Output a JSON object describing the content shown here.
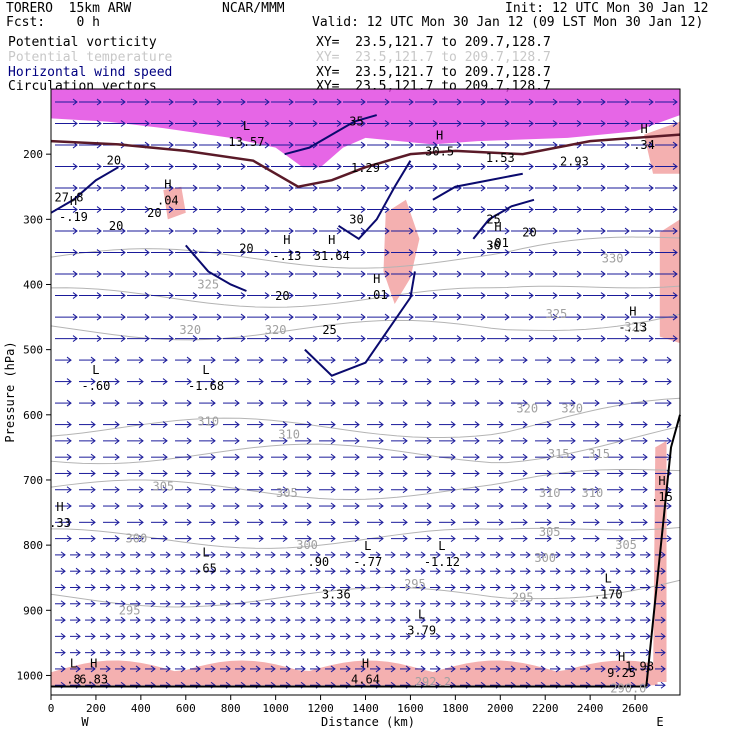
{
  "header": {
    "model": "TORERO  15km ARW",
    "org": "NCAR/MMM",
    "init": "Init: 12 UTC Mon 30 Jan 12",
    "fcst": "Fcst:    0 h",
    "valid": "Valid: 12 UTC Mon 30 Jan 12 (09 LST Mon 30 Jan 12)"
  },
  "legend": [
    {
      "label": "Potential vorticity",
      "color": "#000000",
      "xy": "XY=  23.5,121.7 to 209.7,128.7"
    },
    {
      "label": "Potential temperature",
      "color": "#c8c8c8",
      "xy": "XY=  23.5,121.7 to 209.7,128.7"
    },
    {
      "label": "Horizontal wind speed",
      "color": "#000080",
      "xy": "XY=  23.5,121.7 to 209.7,128.7"
    },
    {
      "label": "Circulation vectors",
      "color": "#000000",
      "xy": "XY=  23.5,121.7 to 209.7,128.7"
    }
  ],
  "chart_data": {
    "type": "cross-section",
    "xlabel": "Distance (km)",
    "ylabel": "Pressure (hPa)",
    "x_left_label": "W",
    "x_right_label": "E",
    "xlim": [
      0,
      2800
    ],
    "ylim": [
      1030,
      100
    ],
    "xticks": [
      0,
      200,
      400,
      600,
      800,
      1000,
      1200,
      1400,
      1600,
      1800,
      2000,
      2200,
      2400,
      2600
    ],
    "yticks": [
      200,
      300,
      400,
      500,
      600,
      700,
      800,
      900,
      1000
    ],
    "colors": {
      "pv_shading_strong": "#e040e0",
      "pv_shading_weak": "#f4b0b0",
      "wind_contour": "#0a0a6e",
      "theta_contour": "#b4b4b4",
      "vector": "#1a1a9a",
      "terrain": "#000000"
    },
    "wind_speed_contours": [
      {
        "value": 20,
        "points": [
          [
            0,
            290
          ],
          [
            100,
            270
          ],
          [
            200,
            240
          ],
          [
            300,
            220
          ]
        ]
      },
      {
        "value": 20,
        "points": [
          [
            600,
            340
          ],
          [
            700,
            380
          ],
          [
            800,
            400
          ],
          [
            870,
            410
          ]
        ]
      },
      {
        "value": 25,
        "points": [
          [
            1130,
            500
          ],
          [
            1250,
            540
          ],
          [
            1400,
            520
          ],
          [
            1500,
            470
          ],
          [
            1600,
            420
          ],
          [
            1620,
            380
          ]
        ]
      },
      {
        "value": 30,
        "points": [
          [
            1280,
            310
          ],
          [
            1370,
            330
          ],
          [
            1450,
            300
          ],
          [
            1530,
            250
          ],
          [
            1600,
            210
          ]
        ]
      },
      {
        "value": 35,
        "points": [
          [
            1040,
            200
          ],
          [
            1150,
            190
          ],
          [
            1250,
            170
          ],
          [
            1350,
            150
          ],
          [
            1450,
            140
          ]
        ]
      },
      {
        "value": 25,
        "points": [
          [
            1700,
            270
          ],
          [
            1800,
            250
          ],
          [
            1950,
            240
          ],
          [
            2100,
            230
          ]
        ]
      },
      {
        "value": 30,
        "points": [
          [
            1880,
            330
          ],
          [
            1950,
            300
          ],
          [
            2050,
            280
          ],
          [
            2150,
            270
          ]
        ]
      }
    ],
    "wind_speed_labels": [
      {
        "x": 280,
        "y": 210,
        "text": "20"
      },
      {
        "x": 290,
        "y": 310,
        "text": "20"
      },
      {
        "x": 870,
        "y": 345,
        "text": "20"
      },
      {
        "x": 1030,
        "y": 418,
        "text": "20"
      },
      {
        "x": 1240,
        "y": 470,
        "text": "25"
      },
      {
        "x": 1360,
        "y": 300,
        "text": "30"
      },
      {
        "x": 1360,
        "y": 150,
        "text": "35"
      },
      {
        "x": 1970,
        "y": 300,
        "text": "25"
      },
      {
        "x": 1970,
        "y": 340,
        "text": "30"
      },
      {
        "x": 2130,
        "y": 320,
        "text": "20"
      },
      {
        "x": 460,
        "y": 290,
        "text": "20"
      }
    ],
    "theta_labels": [
      {
        "x": 620,
        "y": 470,
        "text": "320"
      },
      {
        "x": 1000,
        "y": 470,
        "text": "320"
      },
      {
        "x": 2320,
        "y": 590,
        "text": "320"
      },
      {
        "x": 2120,
        "y": 590,
        "text": "320"
      },
      {
        "x": 2600,
        "y": 465,
        "text": "325"
      },
      {
        "x": 2250,
        "y": 445,
        "text": "325"
      },
      {
        "x": 700,
        "y": 400,
        "text": "325"
      },
      {
        "x": 2500,
        "y": 360,
        "text": "330"
      },
      {
        "x": 700,
        "y": 610,
        "text": "310"
      },
      {
        "x": 1060,
        "y": 630,
        "text": "310"
      },
      {
        "x": 2260,
        "y": 660,
        "text": "315"
      },
      {
        "x": 2440,
        "y": 660,
        "text": "315"
      },
      {
        "x": 500,
        "y": 710,
        "text": "305"
      },
      {
        "x": 1050,
        "y": 720,
        "text": "305"
      },
      {
        "x": 2220,
        "y": 720,
        "text": "310"
      },
      {
        "x": 2410,
        "y": 720,
        "text": "310"
      },
      {
        "x": 2220,
        "y": 780,
        "text": "305"
      },
      {
        "x": 2560,
        "y": 800,
        "text": "305"
      },
      {
        "x": 380,
        "y": 790,
        "text": "300"
      },
      {
        "x": 1140,
        "y": 800,
        "text": "300"
      },
      {
        "x": 2200,
        "y": 820,
        "text": "300"
      },
      {
        "x": 1620,
        "y": 860,
        "text": "295"
      },
      {
        "x": 2100,
        "y": 880,
        "text": "295"
      },
      {
        "x": 350,
        "y": 900,
        "text": "295"
      },
      {
        "x": 2570,
        "y": 1020,
        "text": "290.0"
      },
      {
        "x": 1700,
        "y": 1010,
        "text": "292.2"
      }
    ],
    "extrema_labels": [
      {
        "x": 870,
        "y": 175,
        "mark": "L",
        "value": "13.57"
      },
      {
        "x": 1730,
        "y": 190,
        "mark": "H",
        "value": "30.5"
      },
      {
        "x": 2000,
        "y": 200,
        "mark": "",
        "value": "1.53"
      },
      {
        "x": 2330,
        "y": 205,
        "mark": "",
        "value": "2.93"
      },
      {
        "x": 2640,
        "y": 180,
        "mark": "H",
        "value": ".34"
      },
      {
        "x": 1400,
        "y": 215,
        "mark": "",
        "value": "1.29"
      },
      {
        "x": 80,
        "y": 260,
        "mark": "",
        "value": "27.8"
      },
      {
        "x": 100,
        "y": 290,
        "mark": "H",
        "value": "-.19"
      },
      {
        "x": 520,
        "y": 265,
        "mark": "H",
        "value": ".04"
      },
      {
        "x": 1990,
        "y": 330,
        "mark": "H",
        "value": ".01"
      },
      {
        "x": 1050,
        "y": 350,
        "mark": "H",
        "value": "-.13"
      },
      {
        "x": 1250,
        "y": 350,
        "mark": "H",
        "value": "31.64"
      },
      {
        "x": 1450,
        "y": 410,
        "mark": "H",
        "value": ".01"
      },
      {
        "x": 2590,
        "y": 460,
        "mark": "H",
        "value": "-.13"
      },
      {
        "x": 200,
        "y": 550,
        "mark": "L",
        "value": "-.60"
      },
      {
        "x": 690,
        "y": 550,
        "mark": "L",
        "value": "-1.68"
      },
      {
        "x": 40,
        "y": 760,
        "mark": "H",
        "value": ".33"
      },
      {
        "x": 690,
        "y": 830,
        "mark": "L",
        "value": ".65"
      },
      {
        "x": 1190,
        "y": 820,
        "mark": "",
        "value": ".90"
      },
      {
        "x": 1410,
        "y": 820,
        "mark": "L",
        "value": "-.77"
      },
      {
        "x": 1740,
        "y": 820,
        "mark": "L",
        "value": "-1.12"
      },
      {
        "x": 1270,
        "y": 870,
        "mark": "",
        "value": "3.36"
      },
      {
        "x": 2480,
        "y": 870,
        "mark": "L",
        "value": ".170"
      },
      {
        "x": 1650,
        "y": 925,
        "mark": "L",
        "value": "3.79"
      },
      {
        "x": 100,
        "y": 1000,
        "mark": "L",
        "value": ".8"
      },
      {
        "x": 190,
        "y": 1000,
        "mark": "H",
        "value": "6.83"
      },
      {
        "x": 1400,
        "y": 1000,
        "mark": "H",
        "value": "4.64"
      },
      {
        "x": 2540,
        "y": 990,
        "mark": "H",
        "value": "9.25"
      },
      {
        "x": 2620,
        "y": 980,
        "mark": "",
        "value": "1.98"
      },
      {
        "x": 2720,
        "y": 720,
        "mark": "H",
        "value": ".15"
      }
    ]
  }
}
